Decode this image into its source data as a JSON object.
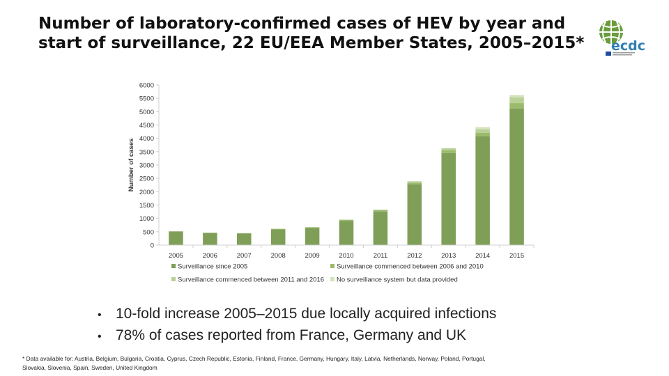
{
  "slide": {
    "title": "Number of laboratory-confirmed cases of HEV by year and start of surveillance, 22 EU/EEA Member States, 2005–2015*",
    "bullets": [
      "10-fold increase 2005–2015 due locally acquired infections",
      "78% of cases reported from France, Germany and UK"
    ],
    "footnote": "* Data available for: Austria, Belgium, Bulgaria, Croatia, Cyprus, Czech Republic, Estonia, Finland, France, Germany, Hungary, Italy, Latvia, Netherlands, Norway, Poland, Portugal, Slovakia, Slovenia, Spain, Sweden, United Kingdom",
    "logo_text": "ecdc",
    "logo_icon": "globe-logo-icon"
  },
  "chart_data": {
    "type": "bar",
    "stacked": true,
    "categories": [
      "2005",
      "2006",
      "2007",
      "2008",
      "2009",
      "2010",
      "2011",
      "2012",
      "2013",
      "2014",
      "2015"
    ],
    "series": [
      {
        "name": "Surveillance since 2005",
        "color": "#7f9f58",
        "values": [
          514,
          460,
          440,
          590,
          640,
          900,
          1250,
          2270,
          3450,
          4080,
          5120
        ]
      },
      {
        "name": "Surveillance commenced between 2006 and 2010",
        "color": "#9bba6c",
        "values": [
          0,
          0,
          0,
          20,
          30,
          50,
          70,
          70,
          100,
          120,
          200
        ]
      },
      {
        "name": "Surveillance commenced between 2011 and 2016",
        "color": "#b9d196",
        "values": [
          0,
          0,
          0,
          0,
          0,
          0,
          0,
          50,
          80,
          140,
          210
        ]
      },
      {
        "name": "No surveillance system but data provided",
        "color": "#d3e3bd",
        "values": [
          0,
          0,
          0,
          0,
          0,
          0,
          0,
          0,
          0,
          80,
          90
        ]
      }
    ],
    "ylabel": "Number of cases",
    "xlabel": "",
    "ylim": [
      0,
      6000
    ],
    "yticks": [
      "0",
      "500",
      "1000",
      "1500",
      "2000",
      "2500",
      "3000",
      "3500",
      "4000",
      "4500",
      "5000",
      "5500",
      "6000"
    ],
    "grid": false,
    "legend_position": "bottom"
  }
}
